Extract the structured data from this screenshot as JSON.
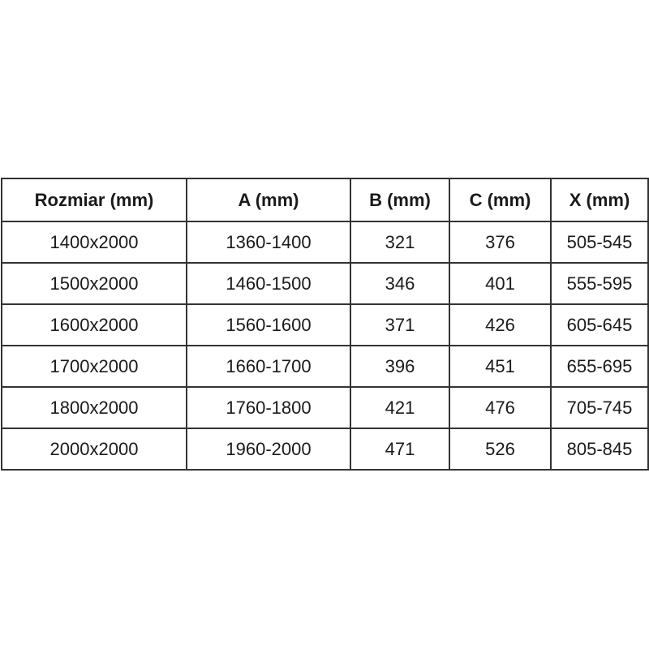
{
  "colors": {
    "background": "#ffffff",
    "border": "#333333",
    "text": "#1a1a1a"
  },
  "table": {
    "headers": [
      "Rozmiar (mm)",
      "A (mm)",
      "B (mm)",
      "C (mm)",
      "X (mm)"
    ],
    "rows": [
      [
        "1400x2000",
        "1360-1400",
        "321",
        "376",
        "505-545"
      ],
      [
        "1500x2000",
        "1460-1500",
        "346",
        "401",
        "555-595"
      ],
      [
        "1600x2000",
        "1560-1600",
        "371",
        "426",
        "605-645"
      ],
      [
        "1700x2000",
        "1660-1700",
        "396",
        "451",
        "655-695"
      ],
      [
        "1800x2000",
        "1760-1800",
        "421",
        "476",
        "705-745"
      ],
      [
        "2000x2000",
        "1960-2000",
        "471",
        "526",
        "805-845"
      ]
    ]
  }
}
